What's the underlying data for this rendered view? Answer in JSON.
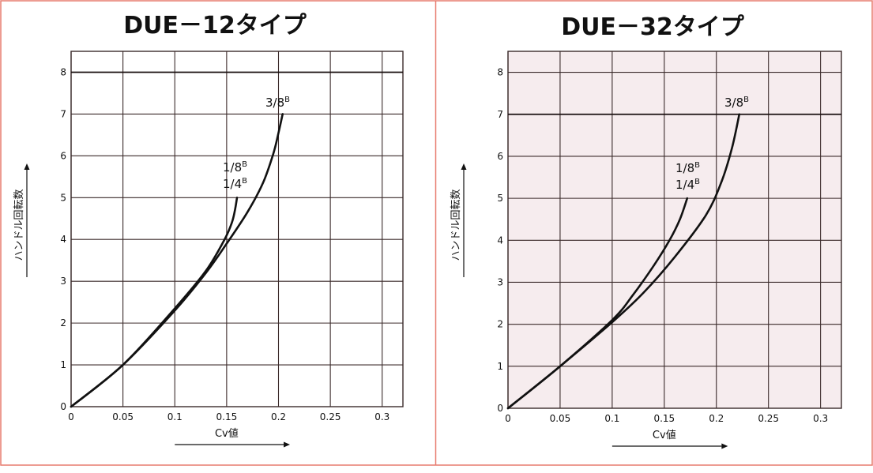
{
  "chart_data": [
    {
      "type": "line",
      "title": "DUE－12タイプ",
      "xlabel": "Cv値",
      "ylabel": "ハンドル回転数",
      "xlim": [
        0,
        0.32
      ],
      "ylim": [
        0,
        8.5
      ],
      "x_ticks": [
        0,
        0.05,
        0.1,
        0.15,
        0.2,
        0.25,
        0.3
      ],
      "x_tick_labels": [
        "0",
        "0.05",
        "0.1",
        "0.15",
        "0.2",
        "0.25",
        "0.3"
      ],
      "y_ticks": [
        0,
        1,
        2,
        3,
        4,
        5,
        6,
        7,
        8
      ],
      "grid": true,
      "background": "#ffffff",
      "series": [
        {
          "name": "1/8B 1/4B",
          "label_main": "1/8",
          "label_sup": "B",
          "label_main2": "1/4",
          "label_sup2": "B",
          "points": [
            [
              0,
              0
            ],
            [
              0.05,
              1.0
            ],
            [
              0.1,
              2.35
            ],
            [
              0.13,
              3.25
            ],
            [
              0.148,
              4.0
            ],
            [
              0.155,
              4.4
            ],
            [
              0.158,
              4.7
            ],
            [
              0.16,
              5.0
            ]
          ]
        },
        {
          "name": "3/8B",
          "label_main": "3/8",
          "label_sup": "B",
          "points": [
            [
              0,
              0
            ],
            [
              0.05,
              1.0
            ],
            [
              0.1,
              2.3
            ],
            [
              0.13,
              3.2
            ],
            [
              0.15,
              3.9
            ],
            [
              0.17,
              4.65
            ],
            [
              0.185,
              5.35
            ],
            [
              0.195,
              6.05
            ],
            [
              0.2,
              6.55
            ],
            [
              0.204,
              7.0
            ]
          ]
        }
      ]
    },
    {
      "type": "line",
      "title": "DUE－32タイプ",
      "xlabel": "Cv値",
      "ylabel": "ハンドル回転数",
      "xlim": [
        0,
        0.32
      ],
      "ylim": [
        0,
        8.5
      ],
      "x_ticks": [
        0,
        0.05,
        0.1,
        0.15,
        0.2,
        0.25,
        0.3
      ],
      "x_tick_labels": [
        "0",
        "0.05",
        "0.1",
        "0.15",
        "0.2",
        "0.25",
        "0.3"
      ],
      "y_ticks": [
        0,
        1,
        2,
        3,
        4,
        5,
        6,
        7,
        8
      ],
      "grid": true,
      "background": "#f6ecee",
      "series": [
        {
          "name": "1/8B 1/4B",
          "label_main": "1/8",
          "label_sup": "B",
          "label_main2": "1/4",
          "label_sup2": "B",
          "points": [
            [
              0,
              0
            ],
            [
              0.05,
              1.0
            ],
            [
              0.1,
              2.1
            ],
            [
              0.12,
              2.7
            ],
            [
              0.14,
              3.4
            ],
            [
              0.155,
              4.0
            ],
            [
              0.165,
              4.5
            ],
            [
              0.172,
              5.0
            ]
          ]
        },
        {
          "name": "3/8B",
          "label_main": "3/8",
          "label_sup": "B",
          "points": [
            [
              0,
              0
            ],
            [
              0.05,
              1.0
            ],
            [
              0.1,
              2.05
            ],
            [
              0.13,
              2.75
            ],
            [
              0.16,
              3.6
            ],
            [
              0.19,
              4.6
            ],
            [
              0.205,
              5.4
            ],
            [
              0.215,
              6.2
            ],
            [
              0.222,
              7.0
            ]
          ]
        }
      ]
    }
  ]
}
